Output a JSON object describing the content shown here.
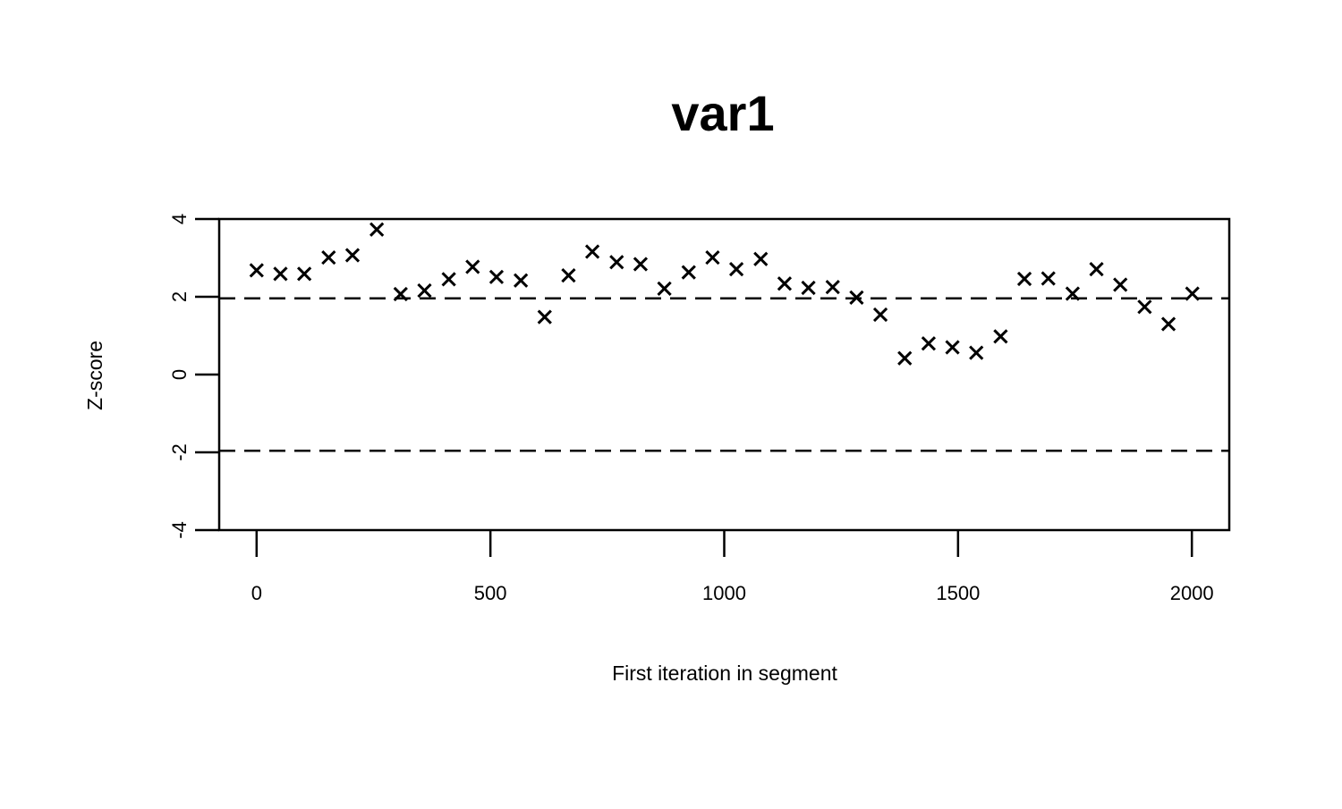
{
  "chart_data": {
    "type": "scatter",
    "title": "var1",
    "xlabel": "First iteration in segment",
    "ylabel": "Z-score",
    "xlim": [
      -80,
      2080
    ],
    "ylim": [
      -4,
      4
    ],
    "x_ticks": [
      0,
      500,
      1000,
      1500,
      2000
    ],
    "y_ticks": [
      -4,
      -2,
      0,
      2,
      4
    ],
    "marker": "x",
    "reference_lines": [
      1.96,
      -1.96
    ],
    "grid": false,
    "series": [
      {
        "x": [
          0,
          51,
          102,
          154,
          205,
          257,
          308,
          359,
          411,
          462,
          513,
          565,
          616,
          667,
          718,
          770,
          821,
          872,
          924,
          975,
          1026,
          1078,
          1129,
          1180,
          1232,
          1283,
          1334,
          1386,
          1437,
          1488,
          1539,
          1591,
          1642,
          1693,
          1745,
          1796,
          1847,
          1899,
          1950,
          2001
        ],
        "y": [
          2.68,
          2.59,
          2.59,
          3.01,
          3.07,
          3.73,
          2.07,
          2.16,
          2.45,
          2.77,
          2.51,
          2.42,
          1.48,
          2.55,
          3.16,
          2.89,
          2.84,
          2.21,
          2.63,
          3.01,
          2.71,
          2.97,
          2.34,
          2.23,
          2.25,
          1.98,
          1.54,
          0.42,
          0.8,
          0.7,
          0.56,
          0.98,
          2.46,
          2.47,
          2.08,
          2.71,
          2.31,
          1.74,
          1.3,
          2.08
        ]
      }
    ]
  }
}
